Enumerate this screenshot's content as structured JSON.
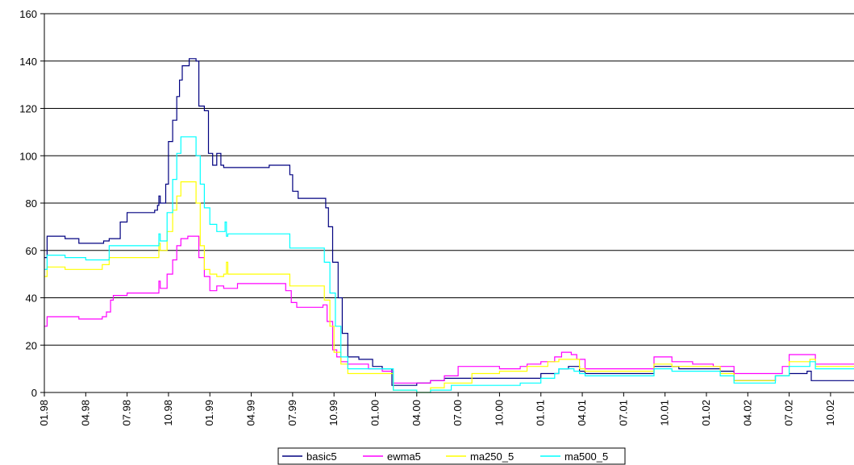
{
  "chart_data": {
    "type": "line",
    "title": "",
    "xlabel": "",
    "ylabel": "",
    "ylim": [
      0,
      160
    ],
    "yticks": [
      0,
      20,
      40,
      60,
      80,
      100,
      120,
      140,
      160
    ],
    "x_tick_labels": [
      "01.98",
      "04.98",
      "07.98",
      "10.98",
      "01.99",
      "04.99",
      "07.99",
      "10.99",
      "01.00",
      "04.00",
      "07.00",
      "10.00",
      "01.01",
      "04.01",
      "07.01",
      "10.01",
      "01.02",
      "04.02",
      "07.02",
      "10.02"
    ],
    "x_range_months": [
      0,
      58.7
    ],
    "grid": "horizontal",
    "legend": "bottom",
    "series": [
      {
        "name": "basic5",
        "color": "#000080",
        "points": [
          [
            0.0,
            57
          ],
          [
            0.2,
            66
          ],
          [
            1.2,
            66
          ],
          [
            1.5,
            65
          ],
          [
            2.5,
            63
          ],
          [
            4.3,
            64
          ],
          [
            4.7,
            65
          ],
          [
            5.5,
            72
          ],
          [
            6.0,
            76
          ],
          [
            8.0,
            77
          ],
          [
            8.2,
            79
          ],
          [
            8.3,
            83
          ],
          [
            8.4,
            80
          ],
          [
            8.8,
            88
          ],
          [
            9.0,
            106
          ],
          [
            9.3,
            115
          ],
          [
            9.6,
            125
          ],
          [
            9.8,
            132
          ],
          [
            10.0,
            138
          ],
          [
            10.5,
            141
          ],
          [
            11.0,
            140
          ],
          [
            11.2,
            121
          ],
          [
            11.6,
            119
          ],
          [
            11.9,
            101
          ],
          [
            12.2,
            96
          ],
          [
            12.5,
            101
          ],
          [
            12.8,
            96
          ],
          [
            13.0,
            95
          ],
          [
            13.5,
            95
          ],
          [
            15.5,
            95
          ],
          [
            16.3,
            96
          ],
          [
            17.4,
            96
          ],
          [
            17.8,
            92
          ],
          [
            18.0,
            85
          ],
          [
            18.4,
            82
          ],
          [
            20.2,
            82
          ],
          [
            20.4,
            78
          ],
          [
            20.6,
            70
          ],
          [
            20.9,
            55
          ],
          [
            21.3,
            40
          ],
          [
            21.6,
            25
          ],
          [
            22.0,
            15
          ],
          [
            22.8,
            14
          ],
          [
            23.8,
            11
          ],
          [
            24.5,
            10
          ],
          [
            25.0,
            10
          ],
          [
            25.2,
            3
          ],
          [
            26.2,
            3
          ],
          [
            27.0,
            4
          ],
          [
            28.0,
            5
          ],
          [
            29.0,
            6
          ],
          [
            30.0,
            6
          ],
          [
            33.0,
            6
          ],
          [
            34.5,
            6
          ],
          [
            36.0,
            8
          ],
          [
            37.3,
            10
          ],
          [
            38.0,
            11
          ],
          [
            38.8,
            9
          ],
          [
            39.2,
            8
          ],
          [
            42.0,
            8
          ],
          [
            44.0,
            8
          ],
          [
            44.2,
            11
          ],
          [
            45.5,
            11
          ],
          [
            46.0,
            10
          ],
          [
            48.0,
            10
          ],
          [
            49.0,
            9
          ],
          [
            50.0,
            5
          ],
          [
            52.0,
            5
          ],
          [
            52.5,
            5
          ],
          [
            53.0,
            7
          ],
          [
            54.0,
            8
          ],
          [
            55.3,
            9
          ],
          [
            55.6,
            5
          ],
          [
            58.7,
            5
          ]
        ]
      },
      {
        "name": "ewma5",
        "color": "#FF00FF",
        "points": [
          [
            0.0,
            28
          ],
          [
            0.2,
            32
          ],
          [
            2.2,
            32
          ],
          [
            2.5,
            31
          ],
          [
            3.5,
            31
          ],
          [
            4.2,
            32
          ],
          [
            4.5,
            34
          ],
          [
            4.8,
            39
          ],
          [
            5.0,
            41
          ],
          [
            6.0,
            42
          ],
          [
            8.1,
            42
          ],
          [
            8.3,
            47
          ],
          [
            8.4,
            44
          ],
          [
            8.9,
            50
          ],
          [
            9.3,
            56
          ],
          [
            9.6,
            62
          ],
          [
            9.9,
            65
          ],
          [
            10.4,
            66
          ],
          [
            10.9,
            66
          ],
          [
            11.2,
            57
          ],
          [
            11.6,
            49
          ],
          [
            12.0,
            43
          ],
          [
            12.5,
            45
          ],
          [
            13.0,
            44
          ],
          [
            13.3,
            44
          ],
          [
            14.0,
            46
          ],
          [
            16.0,
            46
          ],
          [
            17.0,
            46
          ],
          [
            17.5,
            43
          ],
          [
            17.9,
            38
          ],
          [
            18.3,
            36
          ],
          [
            20.2,
            37
          ],
          [
            20.5,
            30
          ],
          [
            20.9,
            18
          ],
          [
            21.2,
            15
          ],
          [
            21.5,
            13
          ],
          [
            22.0,
            12
          ],
          [
            23.5,
            10
          ],
          [
            24.5,
            9
          ],
          [
            25.3,
            4
          ],
          [
            27.0,
            4
          ],
          [
            28.0,
            5
          ],
          [
            29.0,
            7
          ],
          [
            30.0,
            11
          ],
          [
            31.5,
            11
          ],
          [
            33.0,
            10
          ],
          [
            34.5,
            11
          ],
          [
            35.0,
            12
          ],
          [
            36.0,
            13
          ],
          [
            37.0,
            15
          ],
          [
            37.5,
            17
          ],
          [
            38.2,
            16
          ],
          [
            38.6,
            14
          ],
          [
            39.2,
            10
          ],
          [
            42.0,
            10
          ],
          [
            44.0,
            10
          ],
          [
            44.2,
            15
          ],
          [
            45.5,
            13
          ],
          [
            47.0,
            12
          ],
          [
            48.5,
            11
          ],
          [
            50.0,
            8
          ],
          [
            52.5,
            8
          ],
          [
            53.5,
            11
          ],
          [
            54.0,
            16
          ],
          [
            55.5,
            16
          ],
          [
            55.9,
            12
          ],
          [
            58.7,
            12
          ]
        ]
      },
      {
        "name": "ma250_5",
        "color": "#FFFF00",
        "points": [
          [
            0.0,
            49
          ],
          [
            0.2,
            53
          ],
          [
            1.0,
            53
          ],
          [
            1.5,
            52
          ],
          [
            3.5,
            52
          ],
          [
            4.2,
            54
          ],
          [
            4.7,
            57
          ],
          [
            5.5,
            57
          ],
          [
            8.1,
            57
          ],
          [
            8.3,
            63
          ],
          [
            8.4,
            60
          ],
          [
            8.9,
            68
          ],
          [
            9.3,
            77
          ],
          [
            9.6,
            83
          ],
          [
            9.9,
            89
          ],
          [
            10.6,
            89
          ],
          [
            11.0,
            80
          ],
          [
            11.3,
            62
          ],
          [
            11.6,
            52
          ],
          [
            12.0,
            50
          ],
          [
            12.5,
            49
          ],
          [
            13.0,
            50
          ],
          [
            13.2,
            55
          ],
          [
            13.3,
            50
          ],
          [
            16.0,
            50
          ],
          [
            17.4,
            50
          ],
          [
            17.8,
            45
          ],
          [
            20.0,
            45
          ],
          [
            20.3,
            39
          ],
          [
            20.7,
            28
          ],
          [
            21.0,
            17
          ],
          [
            21.5,
            12
          ],
          [
            22.0,
            8
          ],
          [
            23.8,
            8
          ],
          [
            25.0,
            8
          ],
          [
            25.3,
            1
          ],
          [
            27.0,
            0
          ],
          [
            28.0,
            2
          ],
          [
            29.0,
            4
          ],
          [
            31.0,
            8
          ],
          [
            33.0,
            9
          ],
          [
            35.0,
            11
          ],
          [
            36.5,
            13
          ],
          [
            37.3,
            14
          ],
          [
            38.4,
            14
          ],
          [
            38.8,
            10
          ],
          [
            39.2,
            9
          ],
          [
            44.0,
            9
          ],
          [
            44.2,
            12
          ],
          [
            45.5,
            11
          ],
          [
            48.0,
            11
          ],
          [
            49.0,
            8
          ],
          [
            50.0,
            5
          ],
          [
            52.5,
            5
          ],
          [
            53.0,
            7
          ],
          [
            54.0,
            13
          ],
          [
            55.5,
            14
          ],
          [
            55.9,
            11
          ],
          [
            58.7,
            11
          ]
        ]
      },
      {
        "name": "ma500_5",
        "color": "#00FFFF",
        "points": [
          [
            0.0,
            52
          ],
          [
            0.2,
            58
          ],
          [
            1.5,
            57
          ],
          [
            3.0,
            56
          ],
          [
            4.3,
            56
          ],
          [
            4.7,
            62
          ],
          [
            6.0,
            62
          ],
          [
            8.1,
            62
          ],
          [
            8.3,
            67
          ],
          [
            8.4,
            64
          ],
          [
            8.9,
            76
          ],
          [
            9.3,
            90
          ],
          [
            9.6,
            101
          ],
          [
            9.9,
            108
          ],
          [
            10.6,
            108
          ],
          [
            11.0,
            100
          ],
          [
            11.3,
            88
          ],
          [
            11.6,
            78
          ],
          [
            12.0,
            71
          ],
          [
            12.5,
            68
          ],
          [
            13.0,
            68
          ],
          [
            13.1,
            72
          ],
          [
            13.2,
            66
          ],
          [
            13.3,
            67
          ],
          [
            16.0,
            67
          ],
          [
            17.4,
            67
          ],
          [
            17.8,
            61
          ],
          [
            19.5,
            61
          ],
          [
            20.3,
            55
          ],
          [
            20.7,
            42
          ],
          [
            21.1,
            28
          ],
          [
            21.5,
            15
          ],
          [
            22.0,
            10
          ],
          [
            23.8,
            10
          ],
          [
            25.0,
            10
          ],
          [
            25.3,
            1
          ],
          [
            27.0,
            0
          ],
          [
            28.0,
            1
          ],
          [
            29.5,
            3
          ],
          [
            31.0,
            3
          ],
          [
            33.0,
            3
          ],
          [
            34.5,
            4
          ],
          [
            36.0,
            6
          ],
          [
            37.0,
            8
          ],
          [
            37.3,
            10
          ],
          [
            38.4,
            9
          ],
          [
            38.8,
            8
          ],
          [
            39.2,
            7
          ],
          [
            44.0,
            7
          ],
          [
            44.2,
            10
          ],
          [
            45.5,
            9
          ],
          [
            48.0,
            9
          ],
          [
            49.0,
            7
          ],
          [
            50.0,
            4
          ],
          [
            52.5,
            4
          ],
          [
            53.0,
            7
          ],
          [
            54.0,
            11
          ],
          [
            55.5,
            13
          ],
          [
            55.9,
            10
          ],
          [
            58.7,
            10
          ]
        ]
      }
    ]
  }
}
